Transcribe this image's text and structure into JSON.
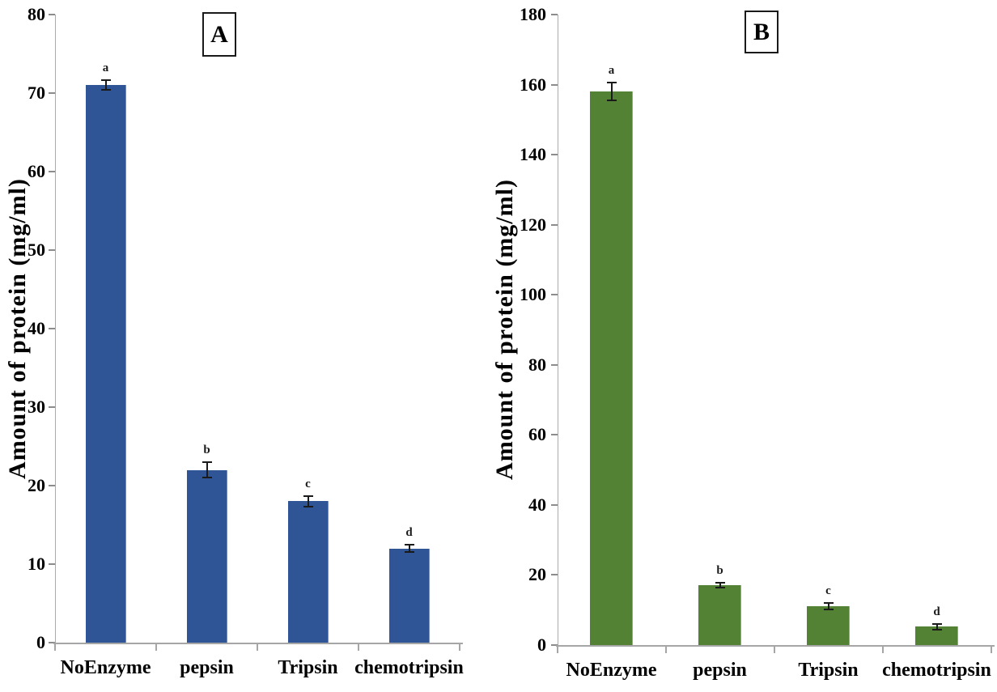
{
  "figure": {
    "description": "Two-panel bar figure comparing amount of protein after enzyme treatments",
    "panels": [
      "A",
      "B"
    ]
  },
  "chart_data": [
    {
      "type": "bar",
      "panel_label": "A",
      "title": "",
      "xlabel": "",
      "ylabel": "Amount of protein (mg/ml)",
      "categories": [
        "NoEnzyme",
        "pepsin",
        "Tripsin",
        "chemotripsin"
      ],
      "values": [
        71,
        22,
        18,
        12
      ],
      "errors": [
        0.6,
        1.0,
        0.7,
        0.5
      ],
      "sig_letters": [
        "a",
        "b",
        "c",
        "d"
      ],
      "bar_color": "#2f5597",
      "ylim": [
        0,
        80
      ],
      "ytick_step": 10,
      "grid": false,
      "legend": "none"
    },
    {
      "type": "bar",
      "panel_label": "B",
      "title": "",
      "xlabel": "",
      "ylabel": "Amount of protein (mg/ml)",
      "categories": [
        "NoEnzyme",
        "pepsin",
        "Tripsin",
        "chemotripsin"
      ],
      "values": [
        158,
        17,
        11,
        5.2
      ],
      "errors": [
        2.5,
        0.7,
        0.9,
        0.7
      ],
      "sig_letters": [
        "a",
        "b",
        "c",
        "d"
      ],
      "bar_color": "#548235",
      "ylim": [
        0,
        180
      ],
      "ytick_step": 20,
      "grid": false,
      "legend": "none"
    }
  ],
  "colors": {
    "axis_line": "#a6a6a6",
    "text": "#000000",
    "error_bar": "#1a1a1a",
    "background": "#ffffff"
  }
}
